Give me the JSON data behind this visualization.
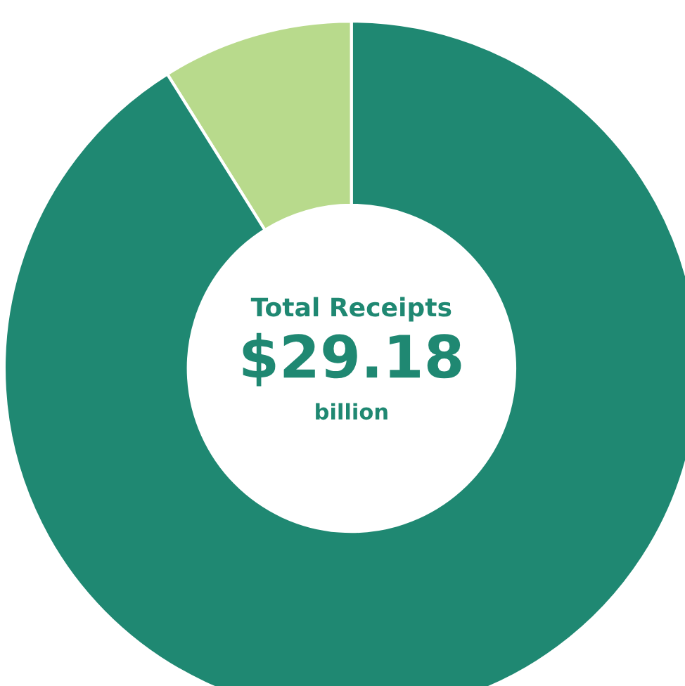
{
  "chart_data": {
    "type": "donut",
    "categories": [
      null,
      null
    ],
    "values": [
      8.9,
      91.1
    ],
    "colors": [
      "#b8da8c",
      "#1f8872"
    ],
    "annotations": [
      "Total Receipts",
      "$29.18",
      "billion"
    ]
  }
}
